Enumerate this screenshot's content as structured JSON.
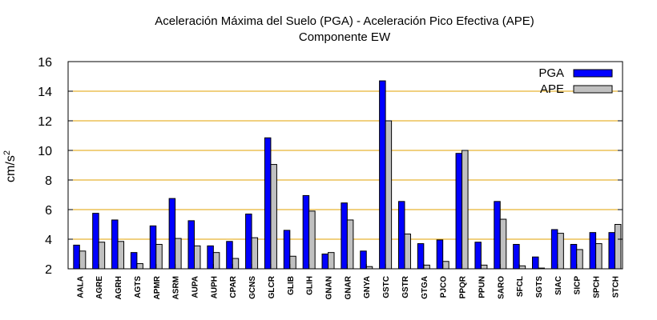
{
  "chart_data": {
    "type": "bar",
    "title": "Aceleración Máxima del Suelo (PGA) -  Aceleración Pico Efectiva (APE)",
    "subtitle": "Componente EW",
    "ylabel": "cm/s",
    "ylabel_sup": "2",
    "xlabel": "",
    "ylim": [
      2,
      16
    ],
    "yticks": [
      2,
      4,
      6,
      8,
      10,
      12,
      14,
      16
    ],
    "grid": true,
    "legend_position": "top-right",
    "categories": [
      "AALA",
      "AGRE",
      "AGRH",
      "AGTS",
      "APMR",
      "ASRM",
      "AUPA",
      "AUPH",
      "CPAR",
      "GCNS",
      "GLCR",
      "GLIB",
      "GLIH",
      "GNAN",
      "GNAR",
      "GNYA",
      "GSTC",
      "GSTR",
      "GTGA",
      "PJCO",
      "PPQR",
      "PPUN",
      "SARO",
      "SFCL",
      "SGTS",
      "SIAC",
      "SICP",
      "SPCH",
      "STCH"
    ],
    "series": [
      {
        "name": "PGA",
        "color": "#0000ff",
        "values": [
          3.6,
          5.75,
          5.3,
          3.1,
          4.9,
          6.75,
          5.25,
          3.55,
          3.85,
          5.7,
          10.85,
          4.6,
          6.95,
          3.0,
          6.45,
          3.2,
          14.7,
          6.55,
          3.7,
          3.95,
          9.8,
          3.8,
          6.55,
          3.65,
          2.8,
          4.65,
          3.65,
          4.45,
          4.45
        ]
      },
      {
        "name": "APE",
        "color": "#c0c0c0",
        "values": [
          3.2,
          3.8,
          3.85,
          2.35,
          3.65,
          4.05,
          3.55,
          3.1,
          2.7,
          4.1,
          9.05,
          2.85,
          5.9,
          3.1,
          5.3,
          2.15,
          12.0,
          4.35,
          2.25,
          2.5,
          10.0,
          2.25,
          5.35,
          2.2,
          2.05,
          4.4,
          3.3,
          3.7,
          5.0
        ]
      }
    ]
  }
}
